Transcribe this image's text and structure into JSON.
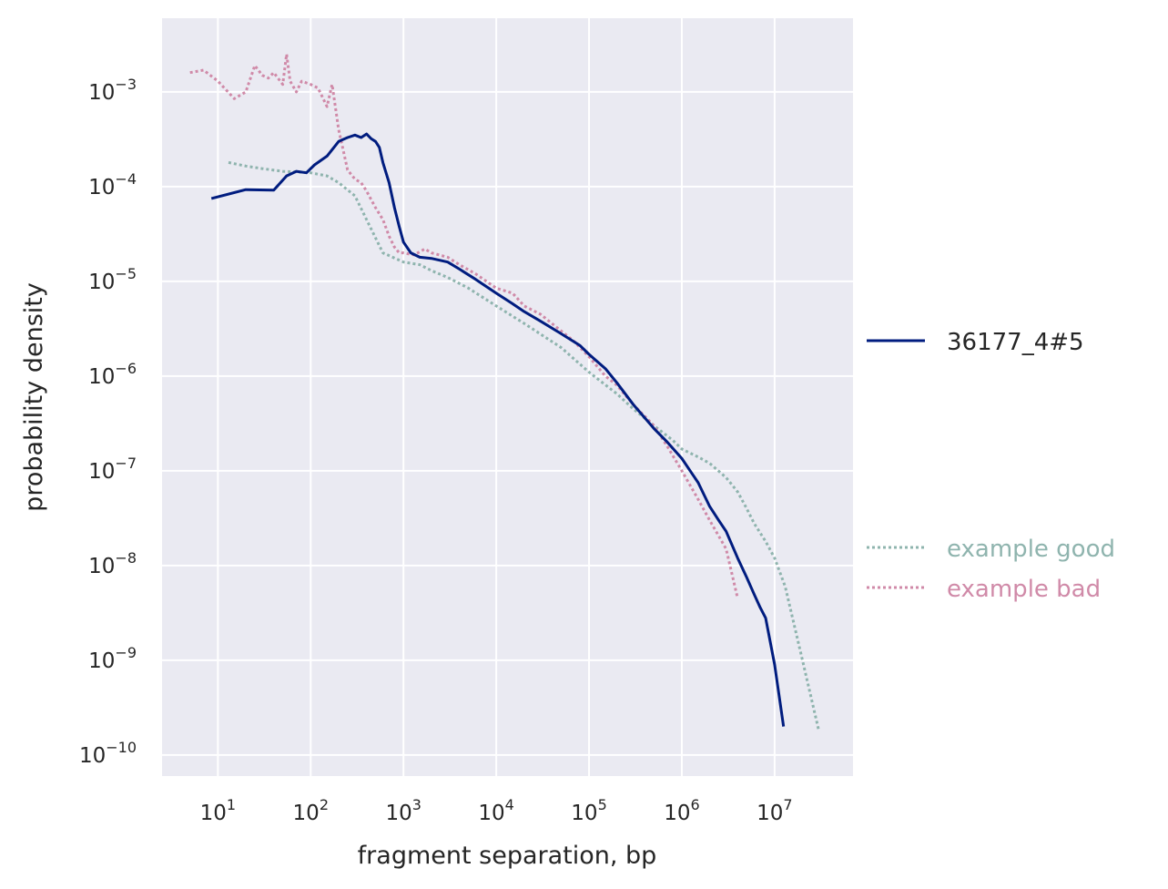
{
  "chart_data": {
    "type": "line",
    "xscale": "log",
    "yscale": "log",
    "xlabel": "fragment separation, bp",
    "ylabel": "probability density",
    "xlim": [
      2.5,
      70000000
    ],
    "ylim": [
      6e-11,
      0.006
    ],
    "x_ticks": [
      {
        "base": "10",
        "exp": "1",
        "value": 10
      },
      {
        "base": "10",
        "exp": "2",
        "value": 100
      },
      {
        "base": "10",
        "exp": "3",
        "value": 1000
      },
      {
        "base": "10",
        "exp": "4",
        "value": 10000
      },
      {
        "base": "10",
        "exp": "5",
        "value": 100000
      },
      {
        "base": "10",
        "exp": "6",
        "value": 1000000
      },
      {
        "base": "10",
        "exp": "7",
        "value": 10000000
      }
    ],
    "y_ticks": [
      {
        "base": "10",
        "exp": "−3",
        "value": 0.001
      },
      {
        "base": "10",
        "exp": "−4",
        "value": 0.0001
      },
      {
        "base": "10",
        "exp": "−5",
        "value": 1e-05
      },
      {
        "base": "10",
        "exp": "−6",
        "value": 1e-06
      },
      {
        "base": "10",
        "exp": "−7",
        "value": 1e-07
      },
      {
        "base": "10",
        "exp": "−8",
        "value": 1e-08
      },
      {
        "base": "10",
        "exp": "−9",
        "value": 1e-09
      },
      {
        "base": "10",
        "exp": "−10",
        "value": 1e-10
      }
    ],
    "grid": true,
    "legend_placement": "right, outside plot",
    "series": [
      {
        "name": "36177_4#5",
        "color": "#001c7f",
        "style": "solid",
        "x": [
          8.5,
          20,
          40,
          55,
          70,
          90,
          110,
          150,
          200,
          250,
          300,
          350,
          400,
          450,
          500,
          550,
          600,
          700,
          800,
          900,
          1000,
          1200,
          1500,
          2000,
          3000,
          4000,
          6000,
          10000,
          15000,
          20000,
          30000,
          50000,
          80000,
          100000,
          150000,
          200000,
          300000,
          500000,
          700000,
          1000000,
          1500000,
          2000000,
          2500000,
          3000000,
          4000000,
          5000000,
          6000000,
          7000000,
          8000000,
          10000000,
          12500000
        ],
        "y": [
          7.5e-05,
          9.3e-05,
          9.2e-05,
          0.00013,
          0.000145,
          0.00014,
          0.00017,
          0.00021,
          0.0003,
          0.00033,
          0.00035,
          0.00033,
          0.00036,
          0.00032,
          0.0003,
          0.00026,
          0.00018,
          0.00011,
          6e-05,
          3.8e-05,
          2.6e-05,
          2e-05,
          1.8e-05,
          1.75e-05,
          1.6e-05,
          1.35e-05,
          1.05e-05,
          7.5e-06,
          5.8e-06,
          4.8e-06,
          3.8e-06,
          2.8e-06,
          2.1e-06,
          1.7e-06,
          1.2e-06,
          8.5e-07,
          5e-07,
          2.8e-07,
          2e-07,
          1.35e-07,
          7.5e-08,
          4.2e-08,
          3e-08,
          2.3e-08,
          1.2e-08,
          7.5e-09,
          5e-09,
          3.6e-09,
          2.8e-09,
          9e-10,
          2e-10
        ]
      },
      {
        "name": "example good",
        "color": "#8fb4ae",
        "style": "dotted",
        "x": [
          13,
          20,
          30,
          50,
          80,
          100,
          150,
          200,
          300,
          400,
          600,
          1000,
          1500,
          2000,
          3000,
          5000,
          10000,
          20000,
          50000,
          100000,
          200000,
          300000,
          500000,
          800000,
          1000000,
          1500000,
          2000000,
          3000000,
          4000000,
          5000000,
          6000000,
          8000000,
          10000000,
          13000000,
          20000000,
          30000000
        ],
        "y": [
          0.00018,
          0.000165,
          0.000155,
          0.000145,
          0.000142,
          0.00014,
          0.00013,
          0.00011,
          8e-05,
          4.5e-05,
          2e-05,
          1.6e-05,
          1.5e-05,
          1.3e-05,
          1.1e-05,
          8.5e-06,
          5.5e-06,
          3.6e-06,
          2e-06,
          1.1e-06,
          6.5e-07,
          4.5e-07,
          3e-07,
          2.1e-07,
          1.7e-07,
          1.4e-07,
          1.2e-07,
          8.5e-08,
          6e-08,
          4e-08,
          2.8e-08,
          1.8e-08,
          1.2e-08,
          6e-09,
          1e-09,
          1.8e-10
        ]
      },
      {
        "name": "example bad",
        "color": "#d08aa8",
        "style": "dotted",
        "x": [
          5,
          7,
          10,
          15,
          20,
          25,
          30,
          35,
          40,
          50,
          55,
          60,
          70,
          80,
          100,
          120,
          150,
          170,
          200,
          250,
          300,
          350,
          400,
          500,
          600,
          700,
          800,
          900,
          1000,
          1300,
          1700,
          2000,
          3000,
          4000,
          6000,
          10000,
          15000,
          20000,
          30000,
          50000,
          70000,
          100000,
          150000,
          200000,
          300000,
          500000,
          700000,
          1000000,
          1500000,
          2000000,
          3000000,
          4000000
        ],
        "y": [
          0.0016,
          0.0017,
          0.0013,
          0.00085,
          0.001,
          0.0019,
          0.0015,
          0.0014,
          0.0016,
          0.0012,
          0.0025,
          0.0013,
          0.001,
          0.0013,
          0.0012,
          0.0011,
          0.0007,
          0.0012,
          0.0004,
          0.00015,
          0.00012,
          0.00011,
          9e-05,
          6e-05,
          4.5e-05,
          3e-05,
          2.3e-05,
          2e-05,
          2e-05,
          1.9e-05,
          2.2e-05,
          2e-05,
          1.8e-05,
          1.5e-05,
          1.2e-05,
          8.5e-06,
          7.5e-06,
          5.5e-06,
          4.5e-06,
          3e-06,
          2.3e-06,
          1.6e-06,
          1e-06,
          8e-07,
          5e-07,
          3e-07,
          1.8e-07,
          1e-07,
          5e-08,
          3e-08,
          1.5e-08,
          4.5e-09
        ]
      }
    ]
  }
}
